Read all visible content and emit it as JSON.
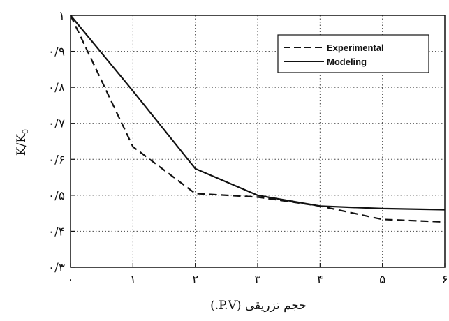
{
  "chart_data": {
    "type": "line",
    "x": [
      0,
      1,
      2,
      3,
      4,
      5,
      6
    ],
    "x_tick_labels": [
      "۰",
      "۱",
      "۲",
      "۳",
      "۴",
      "۵",
      "۶"
    ],
    "y_tick_values": [
      0.3,
      0.4,
      0.5,
      0.6,
      0.7,
      0.8,
      0.9,
      1.0
    ],
    "y_tick_labels": [
      "۰/۳",
      "۰/۴",
      "۰/۵",
      "۰/۶",
      "۰/۷",
      "۰/۸",
      "۰/۹",
      "۱"
    ],
    "xlim": [
      0,
      6
    ],
    "ylim": [
      0.3,
      1.0
    ],
    "grid": true,
    "xlabel": "حجم تزریقی (P.V.)",
    "ylabel": "K/K",
    "ylabel_subscript": "0",
    "legend_position": "top-right",
    "series": [
      {
        "name": "Experimental",
        "style": "dashed",
        "color": "#111111",
        "values": [
          1.0,
          0.635,
          0.505,
          0.495,
          0.47,
          0.433,
          0.426
        ]
      },
      {
        "name": "Modeling",
        "style": "solid",
        "color": "#111111",
        "values": [
          1.0,
          0.79,
          0.574,
          0.5,
          0.47,
          0.463,
          0.46
        ]
      }
    ]
  }
}
